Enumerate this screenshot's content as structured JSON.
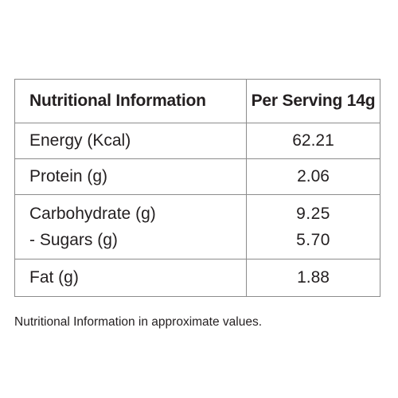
{
  "table": {
    "header": {
      "name": "Nutritional Information",
      "value": "Per Serving 14g"
    },
    "rows": [
      {
        "name": "Energy (Kcal)",
        "value": "62.21"
      },
      {
        "name": "Protein (g)",
        "value": "2.06"
      },
      {
        "name": "Carbohydrate (g)",
        "value": "9.25",
        "sub_name": "- Sugars (g)",
        "sub_value": "5.70"
      },
      {
        "name": "Fat (g)",
        "value": "1.88"
      }
    ]
  },
  "footnote": "Nutritional Information in approximate values."
}
